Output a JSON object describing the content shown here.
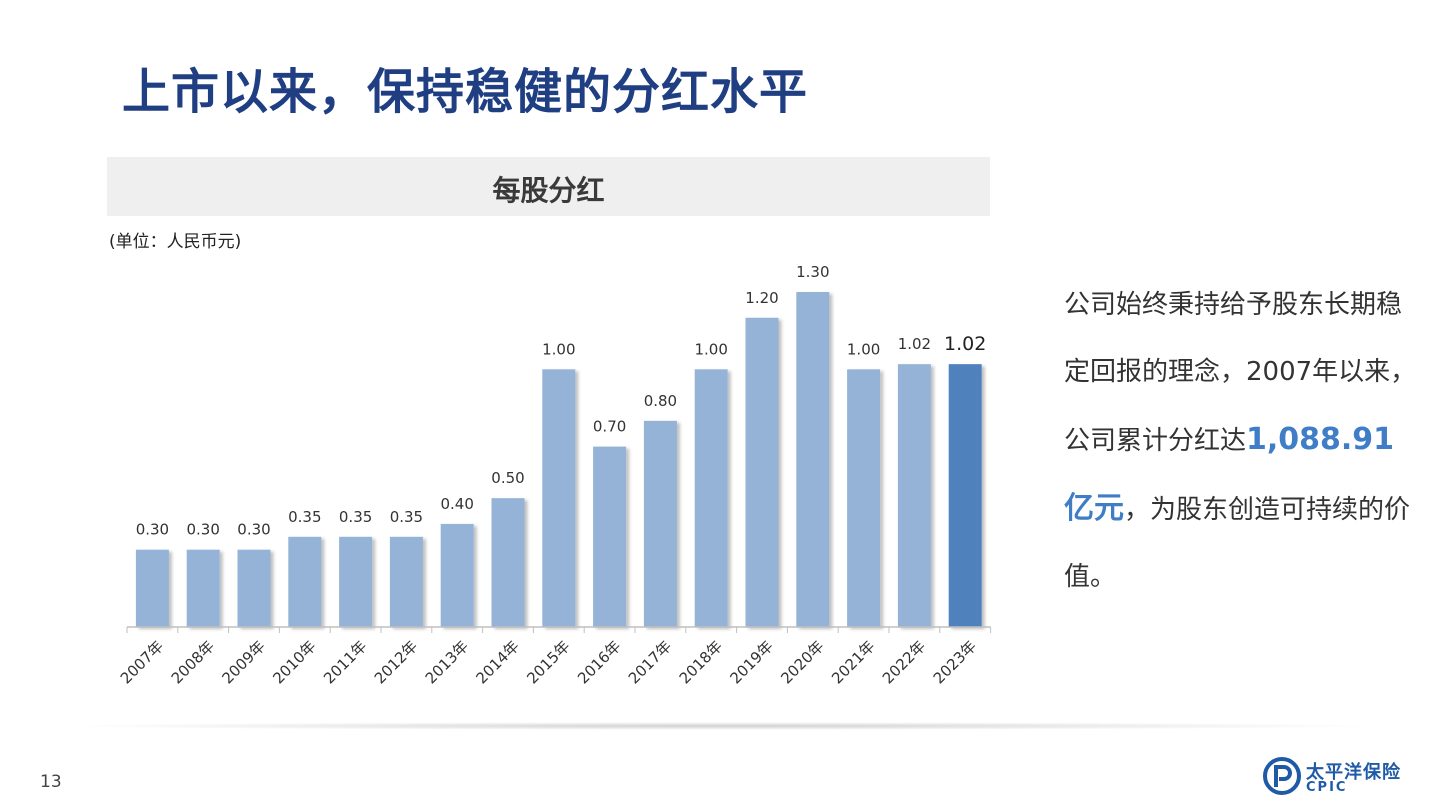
{
  "page": {
    "title": "上市以来，保持稳健的分红水平",
    "page_number": "13"
  },
  "chart_header": {
    "title": "每股分红",
    "unit": "(单位：人民币元)"
  },
  "side_text": {
    "part1": "公司始终秉持给予股东长期稳定回报的理念，2007年以来，公司累计分红达",
    "highlight": "1,088.91亿元",
    "part2": "，为股东创造可持续的价值。"
  },
  "logo": {
    "cn": "太平洋保险",
    "en": "CPIC"
  },
  "colors": {
    "title": "#1f3f82",
    "bar": "#95b3d7",
    "bar_highlight": "#4f81bd",
    "highlight_text": "#3f7dc6"
  },
  "chart_data": {
    "type": "bar",
    "title": "每股分红",
    "unit": "(单位：人民币元)",
    "categories": [
      "2007年",
      "2008年",
      "2009年",
      "2010年",
      "2011年",
      "2012年",
      "2013年",
      "2014年",
      "2015年",
      "2016年",
      "2017年",
      "2018年",
      "2019年",
      "2020年",
      "2021年",
      "2022年",
      "2023年"
    ],
    "values": [
      0.3,
      0.3,
      0.3,
      0.35,
      0.35,
      0.35,
      0.4,
      0.5,
      1.0,
      0.7,
      0.8,
      1.0,
      1.2,
      1.3,
      1.0,
      1.02,
      1.02
    ],
    "labels": [
      "0.30",
      "0.30",
      "0.30",
      "0.35",
      "0.35",
      "0.35",
      "0.40",
      "0.50",
      "1.00",
      "0.70",
      "0.80",
      "1.00",
      "1.20",
      "1.30",
      "1.00",
      "1.02",
      "1.02"
    ],
    "highlight_index": 16,
    "ylim": [
      0,
      1.3
    ],
    "grid": false,
    "legend": "none"
  }
}
